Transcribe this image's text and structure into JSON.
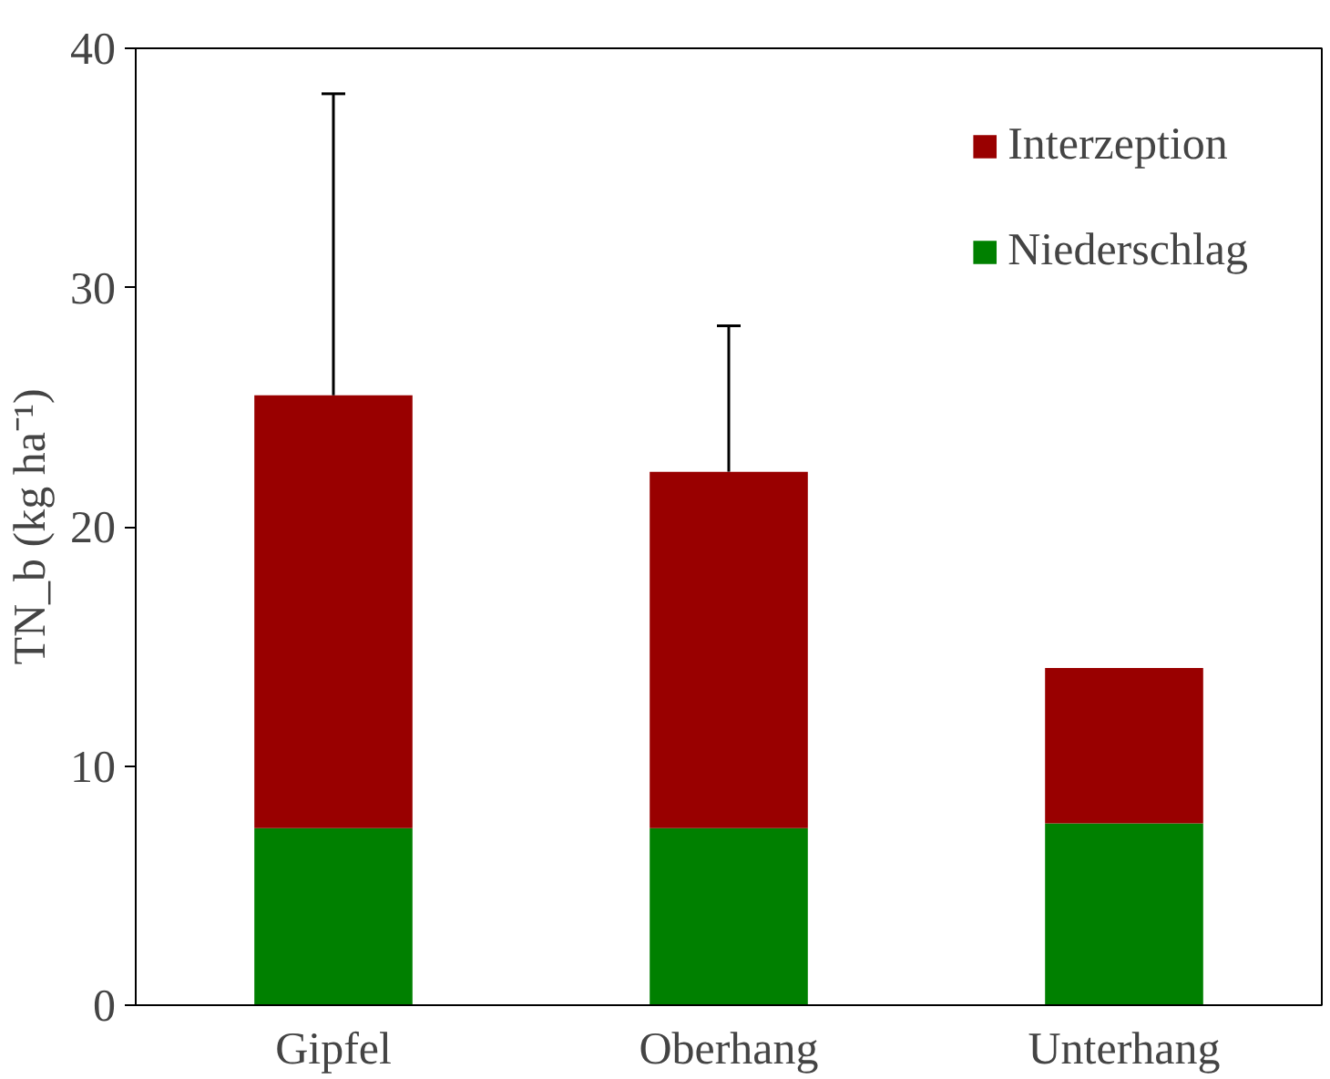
{
  "chart_data": {
    "type": "bar",
    "stacked": true,
    "ylabel": "TN_b (kg ha⁻¹)",
    "categories": [
      "Gipfel",
      "Oberhang",
      "Unterhang"
    ],
    "series": [
      {
        "name": "Niederschlag",
        "color": "#008000",
        "values": [
          7.4,
          7.4,
          7.6
        ]
      },
      {
        "name": "Interzeption",
        "color": "#990000",
        "values": [
          18.1,
          14.9,
          6.5
        ],
        "errors": [
          [
            25.5,
            38.1
          ],
          [
            22.3,
            28.4
          ],
          null
        ]
      }
    ],
    "ylim": [
      0,
      40
    ],
    "yticks": [
      0,
      10,
      20,
      30,
      40
    ],
    "grid": false,
    "legend": "top right"
  }
}
